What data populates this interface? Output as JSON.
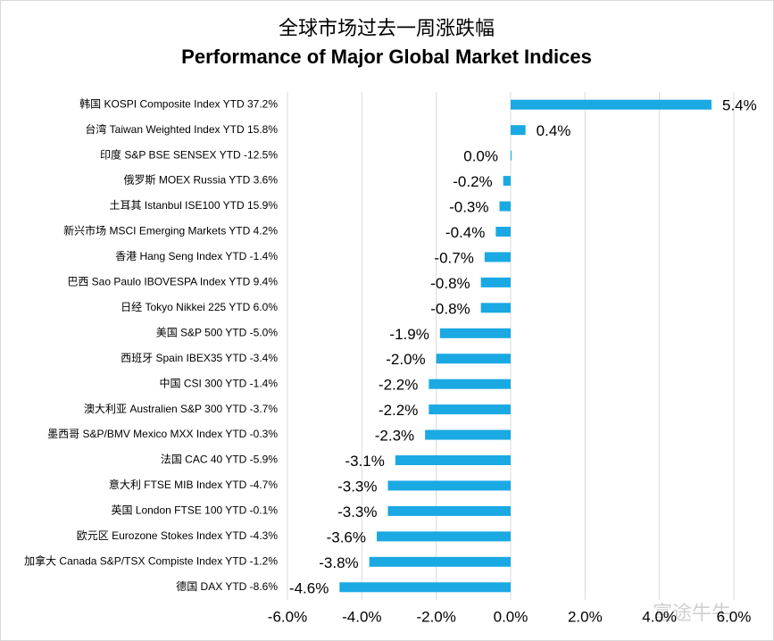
{
  "chart_data": {
    "type": "bar",
    "orientation": "horizontal",
    "title": "全球市场过去一周涨跌幅",
    "subtitle": "Performance of Major Global Market Indices",
    "categories": [
      "韩国 KOSPI Composite Index YTD 37.2%",
      "台湾 Taiwan Weighted Index YTD 15.8%",
      "印度 S&P BSE SENSEX YTD -12.5%",
      "俄罗斯 MOEX Russia  YTD 3.6%",
      "土耳其 Istanbul ISE100 YTD 15.9%",
      "新兴市场 MSCI Emerging Markets YTD 4.2%",
      "香港 Hang Seng Index YTD -1.4%",
      "巴西 Sao Paulo IBOVESPA Index YTD 9.4%",
      "日经 Tokyo Nikkei 225  YTD 6.0%",
      "美国 S&P 500  YTD -5.0%",
      "西班牙 Spain IBEX35 YTD -3.4%",
      "中国 CSI 300 YTD -1.4%",
      "澳大利亚 Australien S&P 300 YTD -3.7%",
      "墨西哥 S&P/BMV Mexico MXX Index YTD -0.3%",
      "法国 CAC 40  YTD -5.9%",
      "意大利 FTSE MIB Index YTD -4.7%",
      "英国 London FTSE 100 YTD -0.1%",
      "欧元区 Eurozone Stokes Index YTD -4.3%",
      "加拿大 Canada S&P/TSX Compiste Index YTD -1.2%",
      "德国 DAX YTD -8.6%"
    ],
    "values": [
      5.4,
      0.4,
      0.0,
      -0.2,
      -0.3,
      -0.4,
      -0.7,
      -0.8,
      -0.8,
      -1.9,
      -2.0,
      -2.2,
      -2.2,
      -2.3,
      -3.1,
      -3.3,
      -3.3,
      -3.6,
      -3.8,
      -4.6
    ],
    "value_labels": [
      "5.4%",
      "0.4%",
      "0.0%",
      "-0.2%",
      "-0.3%",
      "-0.4%",
      "-0.7%",
      "-0.8%",
      "-0.8%",
      "-1.9%",
      "-2.0%",
      "-2.2%",
      "-2.2%",
      "-2.3%",
      "-3.1%",
      "-3.3%",
      "-3.3%",
      "-3.6%",
      "-3.8%",
      "-4.6%"
    ],
    "color": "#1aa9e3",
    "xlim": [
      -6,
      6
    ],
    "xticks": [
      {
        "value": -6,
        "label": "-6.0%"
      },
      {
        "value": -4,
        "label": "-4.0%"
      },
      {
        "value": -2,
        "label": "-2.0%"
      },
      {
        "value": 0,
        "label": "0.0%"
      },
      {
        "value": 2,
        "label": "2.0%"
      },
      {
        "value": 4,
        "label": "4.0%"
      },
      {
        "value": 6,
        "label": "6.0%"
      }
    ],
    "grid": true,
    "watermark": "富途牛牛"
  }
}
